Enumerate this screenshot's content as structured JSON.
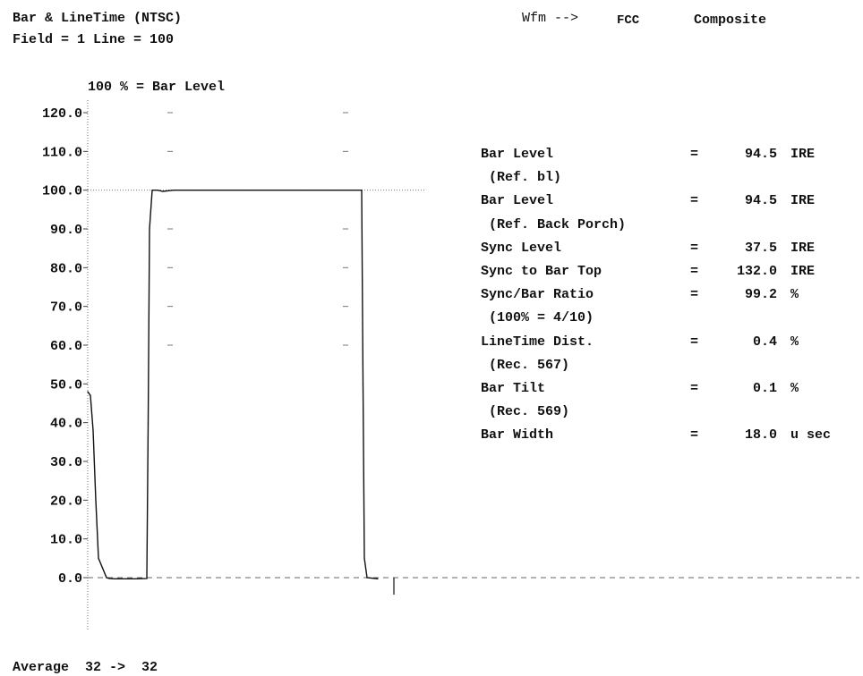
{
  "header": {
    "title": "Bar & LineTime (NTSC)",
    "field_line": "Field = 1 Line = 100",
    "wfm": "Wfm -->",
    "standard": "FCC",
    "signal": "Composite"
  },
  "chart_data": {
    "type": "line",
    "title": "100 % = Bar Level",
    "ylim": [
      -2,
      125
    ],
    "yticks": [
      "120.0",
      "110.0",
      "100.0",
      "90.0",
      "80.0",
      "70.0",
      "60.0",
      "50.0",
      "40.0",
      "30.0",
      "20.0",
      "10.0",
      "0.0"
    ],
    "reference_lines": [
      100.0,
      0.0
    ],
    "grid": "tick marks only",
    "series": [
      {
        "x": [
          0,
          1,
          2,
          3,
          4,
          7,
          8,
          10,
          18,
          22,
          22.5,
          23,
          24,
          26,
          28,
          32,
          40,
          60,
          80,
          90,
          92,
          102,
          102.5,
          103,
          104,
          108
        ],
        "values": [
          48,
          47,
          38,
          20,
          5,
          0,
          -0.2,
          -0.3,
          -0.3,
          -0.2,
          40,
          90,
          100,
          100,
          99.7,
          100,
          100,
          100,
          100,
          100,
          100,
          100,
          50,
          5,
          0,
          -0.3
        ]
      }
    ]
  },
  "measurements": [
    {
      "label": "Bar Level",
      "eq": "=",
      "value": "94.5",
      "unit": "IRE"
    },
    {
      "label": " (Ref. bl)",
      "eq": "",
      "value": "",
      "unit": ""
    },
    {
      "label": "Bar Level",
      "eq": "=",
      "value": "94.5",
      "unit": "IRE"
    },
    {
      "label": " (Ref. Back Porch)",
      "eq": "",
      "value": "",
      "unit": ""
    },
    {
      "label": "Sync Level",
      "eq": "=",
      "value": "37.5",
      "unit": "IRE"
    },
    {
      "label": "Sync to Bar Top",
      "eq": "=",
      "value": "132.0",
      "unit": "IRE"
    },
    {
      "label": "Sync/Bar Ratio",
      "eq": "=",
      "value": "99.2",
      "unit": "%"
    },
    {
      "label": " (100% = 4/10)",
      "eq": "",
      "value": "",
      "unit": ""
    },
    {
      "label": "LineTime Dist.",
      "eq": "=",
      "value": "0.4",
      "unit": "%"
    },
    {
      "label": " (Rec. 567)",
      "eq": "",
      "value": "",
      "unit": ""
    },
    {
      "label": "Bar Tilt",
      "eq": "=",
      "value": "0.1",
      "unit": "%"
    },
    {
      "label": " (Rec. 569)",
      "eq": "",
      "value": "",
      "unit": ""
    },
    {
      "label": "Bar Width",
      "eq": "=",
      "value": "18.0",
      "unit": "u sec"
    }
  ],
  "footer": {
    "average": "Average  32 ->  32"
  }
}
